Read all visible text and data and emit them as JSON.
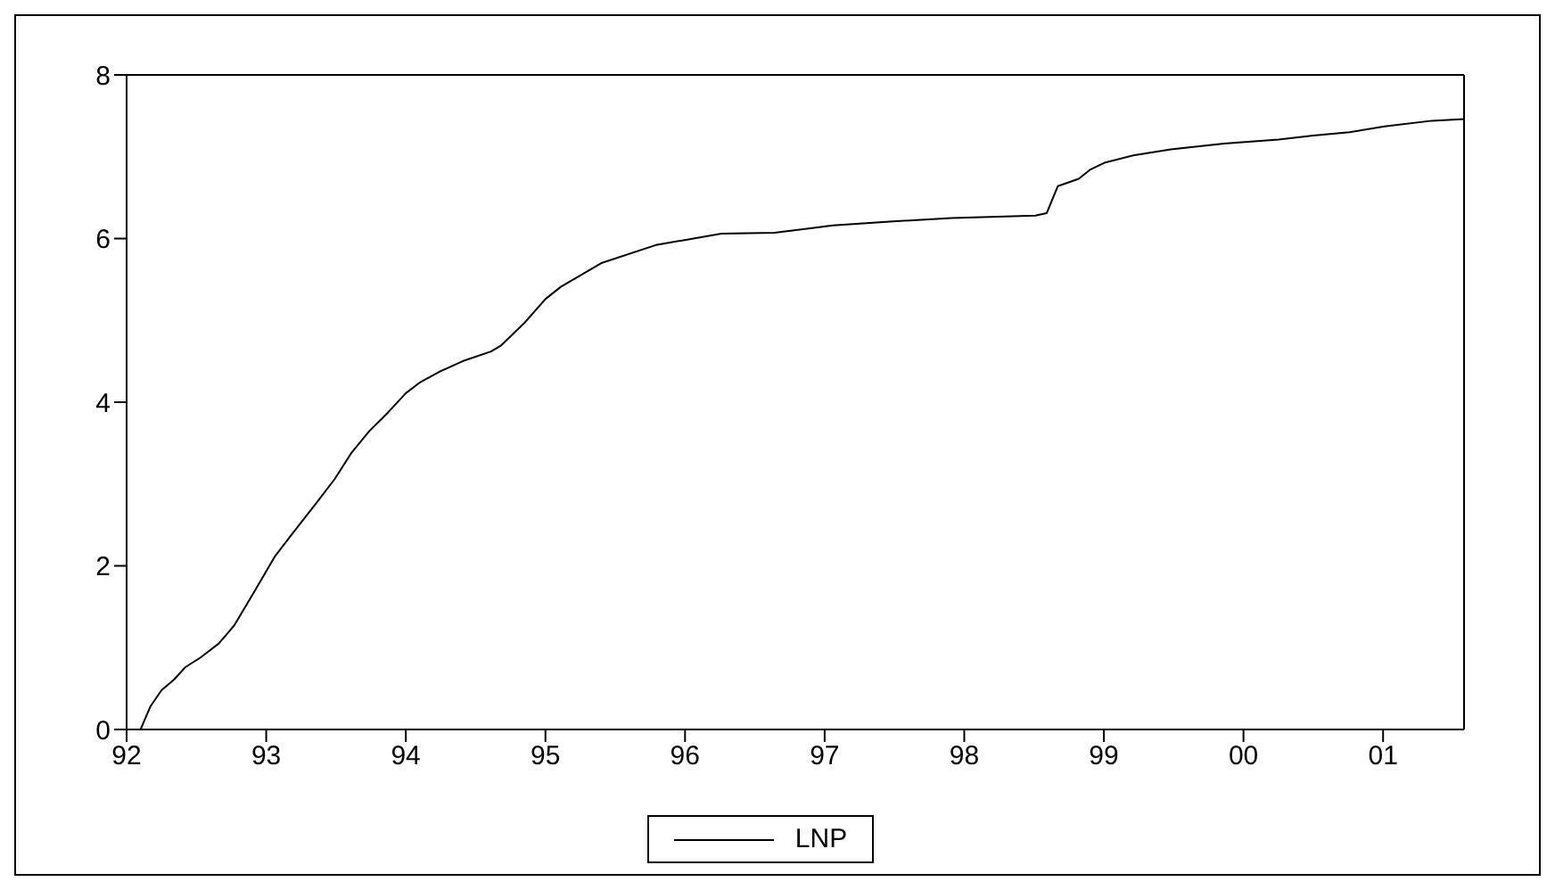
{
  "chart_data": {
    "type": "line",
    "xlim": [
      1992,
      2001.58
    ],
    "ylim": [
      0,
      8
    ],
    "xticks": [
      {
        "value": 1992,
        "label": "92"
      },
      {
        "value": 1993,
        "label": "93"
      },
      {
        "value": 1994,
        "label": "94"
      },
      {
        "value": 1995,
        "label": "95"
      },
      {
        "value": 1996,
        "label": "96"
      },
      {
        "value": 1997,
        "label": "97"
      },
      {
        "value": 1998,
        "label": "98"
      },
      {
        "value": 1999,
        "label": "99"
      },
      {
        "value": 2000,
        "label": "00"
      },
      {
        "value": 2001,
        "label": "01"
      }
    ],
    "yticks": [
      0,
      2,
      4,
      6,
      8
    ],
    "legend": "bottom",
    "marker": "none",
    "line_style": "solid",
    "series": [
      {
        "name": "LNP",
        "color": "#000000",
        "x": [
          1992.1,
          1992.17,
          1992.25,
          1992.34,
          1992.42,
          1992.53,
          1992.66,
          1992.77,
          1992.91,
          1993.06,
          1993.19,
          1993.36,
          1993.49,
          1993.61,
          1993.74,
          1993.87,
          1994.0,
          1994.1,
          1994.25,
          1994.42,
          1994.61,
          1994.68,
          1994.85,
          1995.0,
          1995.11,
          1995.4,
          1995.79,
          1996.26,
          1996.64,
          1997.06,
          1997.49,
          1997.91,
          1998.51,
          1998.59,
          1998.67,
          1998.82,
          1998.9,
          1999.01,
          1999.22,
          1999.48,
          1999.86,
          2000.25,
          2000.5,
          2000.76,
          2001.01,
          2001.35,
          2001.58
        ],
        "values": [
          0,
          0.28,
          0.48,
          0.61,
          0.76,
          0.88,
          1.05,
          1.27,
          1.67,
          2.11,
          2.4,
          2.77,
          3.06,
          3.38,
          3.65,
          3.87,
          4.11,
          4.24,
          4.38,
          4.51,
          4.62,
          4.69,
          4.97,
          5.26,
          5.41,
          5.7,
          5.92,
          6.06,
          6.07,
          6.16,
          6.21,
          6.25,
          6.28,
          6.31,
          6.64,
          6.73,
          6.84,
          6.93,
          7.02,
          7.09,
          7.16,
          7.21,
          7.26,
          7.3,
          7.37,
          7.44,
          7.46
        ]
      }
    ]
  }
}
